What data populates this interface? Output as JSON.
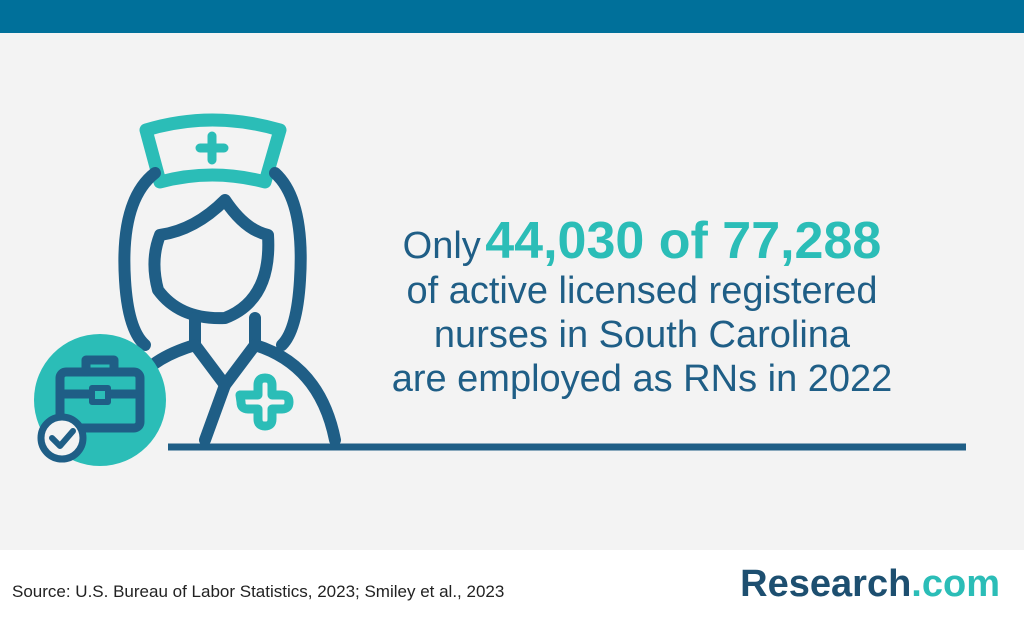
{
  "headline": {
    "lead": "Only",
    "highlight": "44,030 of 77,288",
    "lines": [
      "of active licensed registered",
      "nurses in South Carolina",
      "are employed as RNs in 2022"
    ]
  },
  "source": "Source: U.S. Bureau of Labor Statistics, 2023; Smiley et al., 2023",
  "logo": {
    "main": "Research",
    "accent": ".com"
  }
}
